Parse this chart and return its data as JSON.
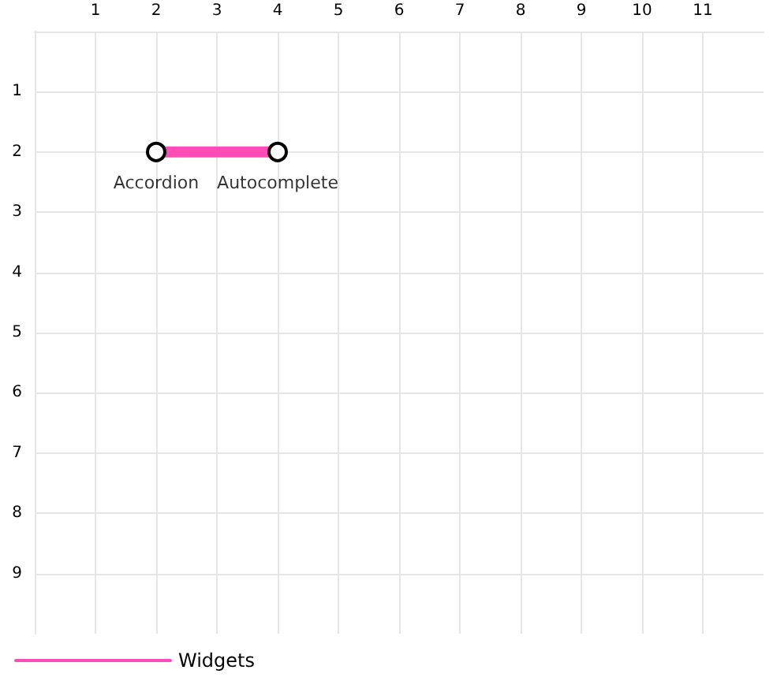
{
  "chart_data": {
    "type": "line",
    "x": [
      2,
      4
    ],
    "series": [
      {
        "name": "Widgets",
        "color": "#ff4db8",
        "values": [
          2,
          2
        ]
      }
    ],
    "annotations": [
      {
        "text": "Accordion",
        "x": 2,
        "y": 2
      },
      {
        "text": "Autocomplete",
        "x": 4,
        "y": 2
      }
    ],
    "xlim": [
      0,
      12
    ],
    "xticks": [
      1,
      2,
      3,
      4,
      5,
      6,
      7,
      8,
      9,
      10,
      11
    ],
    "ylim": [
      10,
      0
    ],
    "yticks": [
      1,
      2,
      3,
      4,
      5,
      6,
      7,
      8,
      9
    ],
    "grid": true,
    "legend": "bottom left",
    "marker": "circle",
    "line_style": "solid"
  }
}
